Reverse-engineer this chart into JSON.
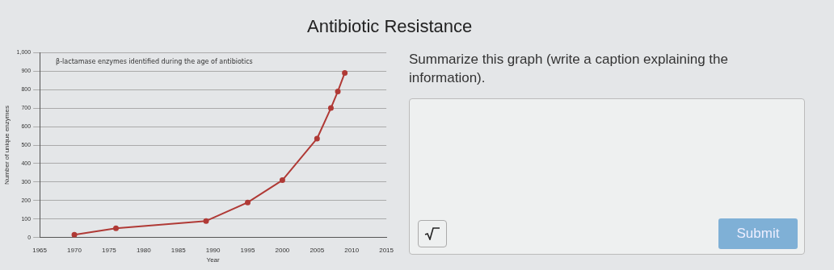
{
  "chart_data": {
    "type": "line",
    "title": "Antibiotic Resistance",
    "subtitle": "β-lactamase enzymes identified during the age of antibiotics",
    "xlabel": "Year",
    "ylabel": "Number of unique enzymes",
    "x": [
      1970,
      1976,
      1989,
      1995,
      2000,
      2005,
      2007,
      2008,
      2009
    ],
    "series": [
      {
        "color": "#b03a36",
        "values": [
          15,
          50,
          90,
          190,
          310,
          535,
          700,
          790,
          890
        ]
      }
    ],
    "xlim": [
      1965,
      2015
    ],
    "xticks": [
      1965,
      1970,
      1975,
      1980,
      1985,
      1990,
      1995,
      2000,
      2005,
      2010,
      2015
    ],
    "ylim": [
      0,
      1000
    ],
    "yticks": [
      0,
      100,
      200,
      300,
      400,
      500,
      600,
      700,
      800,
      900,
      {
        "value": 1000,
        "label": "1,000"
      }
    ],
    "grid": "y",
    "legend": false,
    "marker": "circle",
    "line_style": "solid",
    "annotations": [
      "Summarize this graph (write a caption explaining the information).",
      "Submit"
    ]
  }
}
